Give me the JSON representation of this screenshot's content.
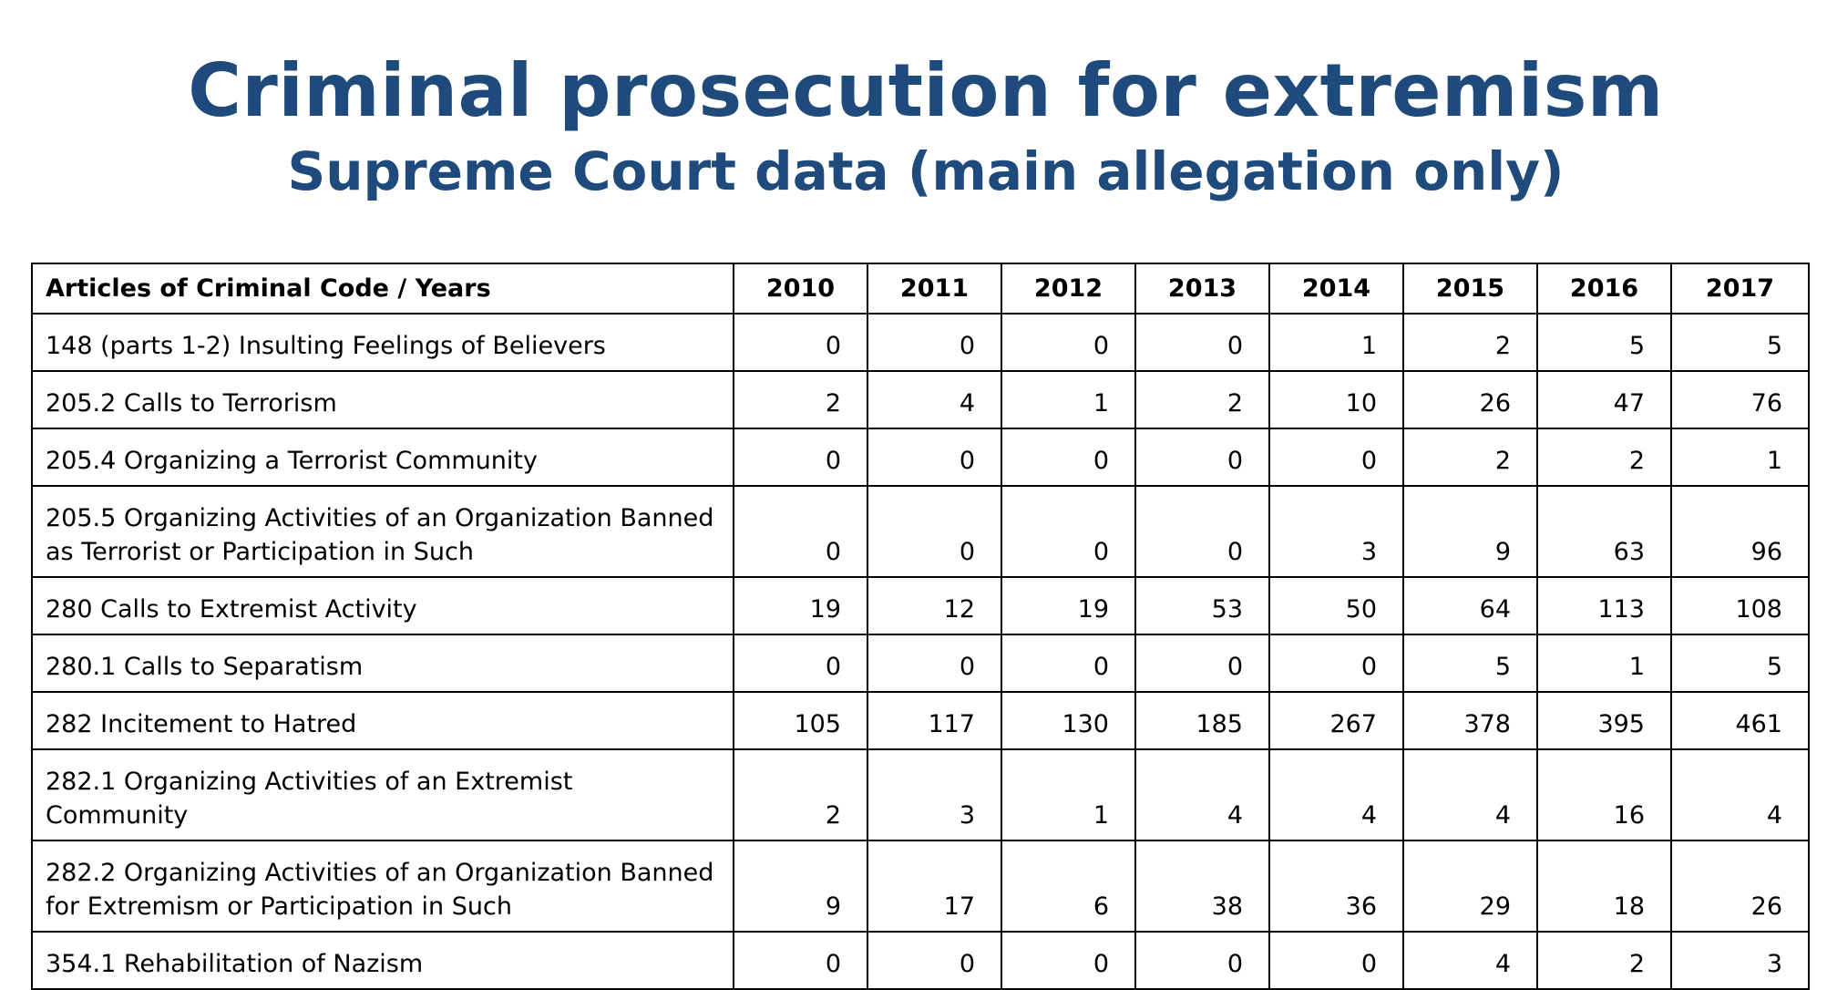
{
  "title": "Criminal prosecution for extremism",
  "subtitle": "Supreme Court data (main allegation only)",
  "chart_data": {
    "type": "table",
    "columns": [
      "Articles of Criminal Code / Years",
      "2010",
      "2011",
      "2012",
      "2013",
      "2014",
      "2015",
      "2016",
      "2017"
    ],
    "rows": [
      {
        "label": "148 (parts 1-2) Insulting Feelings of Believers",
        "values": [
          0,
          0,
          0,
          0,
          1,
          2,
          5,
          5
        ]
      },
      {
        "label": "205.2 Calls to Terrorism",
        "values": [
          2,
          4,
          1,
          2,
          10,
          26,
          47,
          76
        ]
      },
      {
        "label": "205.4 Organizing a Terrorist Community",
        "values": [
          0,
          0,
          0,
          0,
          0,
          2,
          2,
          1
        ]
      },
      {
        "label": "205.5 Organizing Activities of an Organization Banned as Terrorist or Participation in Such",
        "values": [
          0,
          0,
          0,
          0,
          3,
          9,
          63,
          96
        ]
      },
      {
        "label": "280 Calls to Extremist Activity",
        "values": [
          19,
          12,
          19,
          53,
          50,
          64,
          113,
          108
        ]
      },
      {
        "label": "280.1 Calls to Separatism",
        "values": [
          0,
          0,
          0,
          0,
          0,
          5,
          1,
          5
        ]
      },
      {
        "label": "282 Incitement to Hatred",
        "values": [
          105,
          117,
          130,
          185,
          267,
          378,
          395,
          461
        ]
      },
      {
        "label": "282.1 Organizing Activities of an Extremist Community",
        "values": [
          2,
          3,
          1,
          4,
          4,
          4,
          16,
          4
        ]
      },
      {
        "label": "282.2 Organizing Activities of an Organization Banned for Extremism or Participation in Such",
        "values": [
          9,
          17,
          6,
          38,
          36,
          29,
          18,
          26
        ]
      },
      {
        "label": "354.1 Rehabilitation of Nazism",
        "values": [
          0,
          0,
          0,
          0,
          0,
          4,
          2,
          3
        ]
      }
    ]
  }
}
